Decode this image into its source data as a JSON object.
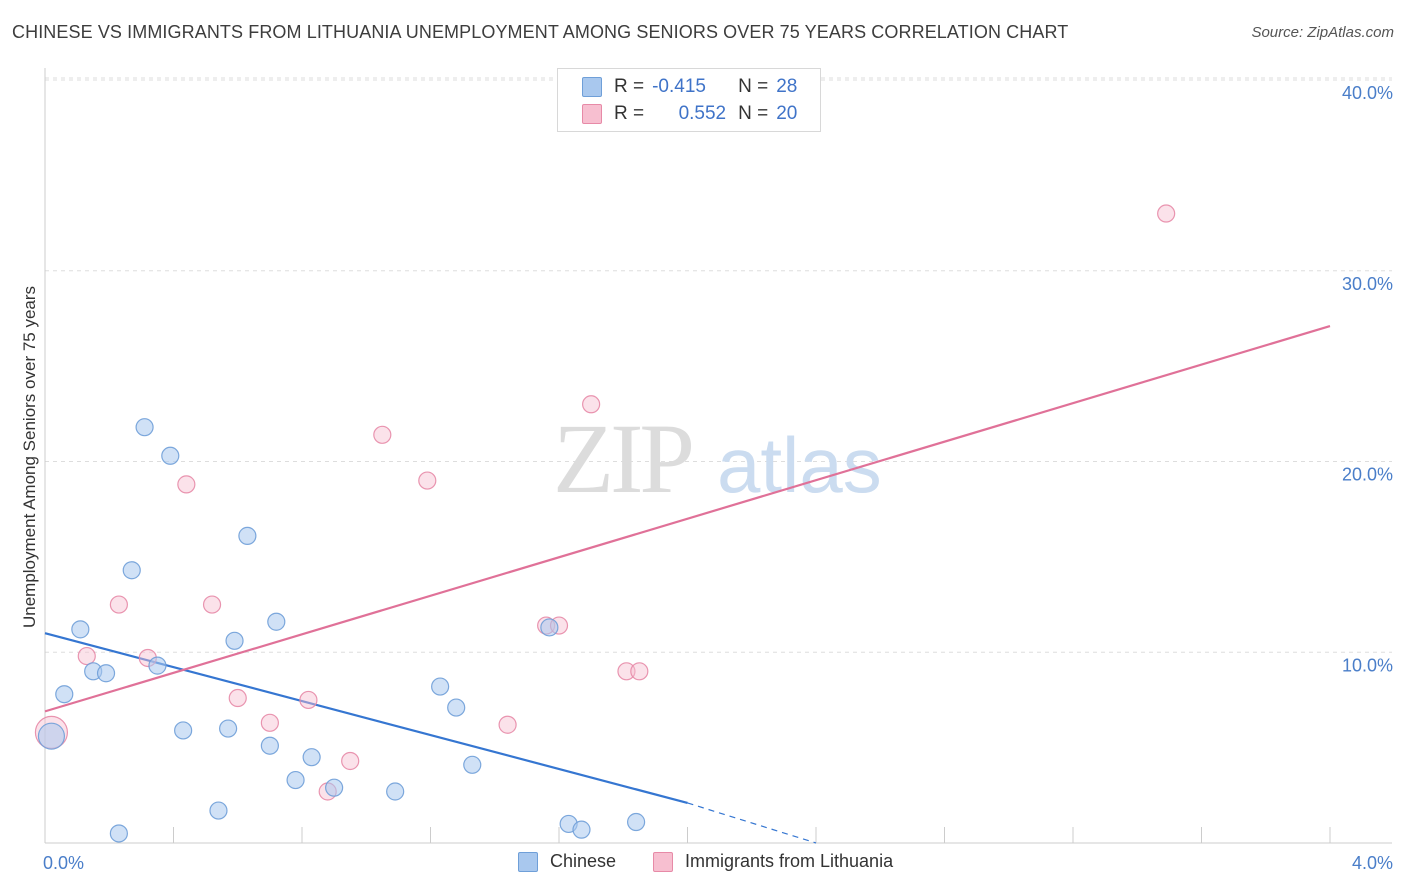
{
  "title": "CHINESE VS IMMIGRANTS FROM LITHUANIA UNEMPLOYMENT AMONG SENIORS OVER 75 YEARS CORRELATION CHART",
  "source": "Source: ZipAtlas.com",
  "watermark": {
    "zip": "ZIP",
    "atlas": "atlas"
  },
  "legend_top": {
    "rows": [
      {
        "r_label": "R =",
        "r_value": "-0.415",
        "n_label": "N =",
        "n_value": "28",
        "color": "#a9c8ee",
        "border": "#6f9fd8"
      },
      {
        "r_label": "R =",
        "r_value": "0.552",
        "n_label": "N =",
        "n_value": "20",
        "color": "#f7bfd0",
        "border": "#e78aa7"
      }
    ]
  },
  "legend_bottom": [
    {
      "label": "Chinese",
      "color": "#a9c8ee",
      "border": "#6f9fd8"
    },
    {
      "label": "Immigrants from Lithuania",
      "color": "#f7bfd0",
      "border": "#e78aa7"
    }
  ],
  "chart_data": {
    "type": "scatter",
    "title": "CHINESE VS IMMIGRANTS FROM LITHUANIA UNEMPLOYMENT AMONG SENIORS OVER 75 YEARS CORRELATION CHART",
    "xlabel": "",
    "ylabel": "Unemployment Among Seniors over 75 years",
    "xlim": [
      0,
      4.0
    ],
    "ylim": [
      0,
      40.0
    ],
    "x_tick_labels": [
      "0.0%",
      "4.0%"
    ],
    "y_ticks": [
      10,
      20,
      30,
      40
    ],
    "y_tick_labels": [
      "10.0%",
      "20.0%",
      "30.0%",
      "40.0%"
    ],
    "grid": true,
    "series": [
      {
        "name": "Chinese",
        "color": "#a9c8ee",
        "stroke": "#6f9fd8",
        "line_color": "#3576d1",
        "points": [
          [
            0.02,
            5.6
          ],
          [
            0.06,
            7.8
          ],
          [
            0.11,
            11.2
          ],
          [
            0.15,
            9.0
          ],
          [
            0.19,
            8.9
          ],
          [
            0.23,
            0.5
          ],
          [
            0.27,
            14.3
          ],
          [
            0.31,
            21.8
          ],
          [
            0.35,
            9.3
          ],
          [
            0.39,
            20.3
          ],
          [
            0.43,
            5.9
          ],
          [
            0.54,
            1.7
          ],
          [
            0.57,
            6.0
          ],
          [
            0.59,
            10.6
          ],
          [
            0.63,
            16.1
          ],
          [
            0.7,
            5.1
          ],
          [
            0.72,
            11.6
          ],
          [
            0.78,
            3.3
          ],
          [
            0.83,
            4.5
          ],
          [
            0.9,
            2.9
          ],
          [
            1.09,
            2.7
          ],
          [
            1.23,
            8.2
          ],
          [
            1.28,
            7.1
          ],
          [
            1.33,
            4.1
          ],
          [
            1.57,
            11.3
          ],
          [
            1.63,
            1.0
          ],
          [
            1.67,
            0.7
          ],
          [
            1.84,
            1.1
          ]
        ],
        "trend": {
          "x": [
            0.0,
            2.0
          ],
          "y": [
            11.0,
            2.1
          ]
        },
        "trend_dashed": {
          "x": [
            2.0,
            2.4
          ],
          "y": [
            2.1,
            0.0
          ]
        }
      },
      {
        "name": "Immigrants from Lithuania",
        "color": "#f7bfd0",
        "stroke": "#e78aa7",
        "line_color": "#e07198",
        "points": [
          [
            0.02,
            5.8
          ],
          [
            0.13,
            9.8
          ],
          [
            0.23,
            12.5
          ],
          [
            0.32,
            9.7
          ],
          [
            0.44,
            18.8
          ],
          [
            0.52,
            12.5
          ],
          [
            0.6,
            7.6
          ],
          [
            0.7,
            6.3
          ],
          [
            0.82,
            7.5
          ],
          [
            0.88,
            2.7
          ],
          [
            0.95,
            4.3
          ],
          [
            1.05,
            21.4
          ],
          [
            1.19,
            19.0
          ],
          [
            1.44,
            6.2
          ],
          [
            1.56,
            11.4
          ],
          [
            1.6,
            11.4
          ],
          [
            1.7,
            23.0
          ],
          [
            1.81,
            9.0
          ],
          [
            1.85,
            9.0
          ],
          [
            3.49,
            33.0
          ]
        ],
        "trend": {
          "x": [
            0.0,
            4.0
          ],
          "y": [
            6.9,
            27.1
          ]
        }
      }
    ]
  }
}
